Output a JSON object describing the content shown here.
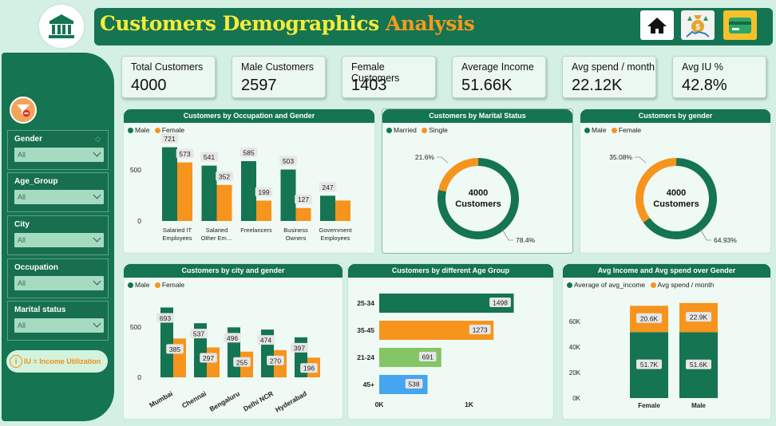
{
  "header": {
    "title_part1": "Customers Demographics",
    "title_part2": "Analysis",
    "buttons": {
      "home_icon": "home-icon",
      "money_icon": "money-bag-icon",
      "card_icon": "credit-card-icon"
    }
  },
  "sidebar": {
    "slicers": [
      {
        "label": "Gender",
        "value": "All"
      },
      {
        "label": "Age_Group",
        "value": "All"
      },
      {
        "label": "City",
        "value": "All"
      },
      {
        "label": "Occupation",
        "value": "All"
      },
      {
        "label": "Marital status",
        "value": "All"
      }
    ],
    "note_icon": "i",
    "note": "IU = Income Utilization"
  },
  "kpis": [
    {
      "label": "Total Customers",
      "value": "4000"
    },
    {
      "label": "Male Customers",
      "value": "2597"
    },
    {
      "label": "Female Customers",
      "value": "1403"
    },
    {
      "label": "Average Income",
      "value": "51.66K"
    },
    {
      "label": "Avg spend / month",
      "value": "22.12K"
    },
    {
      "label": "Avg IU %",
      "value": "42.8%"
    }
  ],
  "colors": {
    "green": "#157451",
    "orange": "#f7941d",
    "light_green": "#84c566",
    "blue": "#45a5f0"
  },
  "charts": {
    "occupation": {
      "title": "Customers by Occupation and Gender",
      "legend": [
        "Male",
        "Female"
      ]
    },
    "marital": {
      "title": "Customers by Marital Status",
      "legend": [
        "Married",
        "Single"
      ],
      "center_value": "4000",
      "center_label": "Customers",
      "labels": [
        "78.4%",
        "21.6%"
      ]
    },
    "gender": {
      "title": "Customers by gender",
      "legend": [
        "Male",
        "Female"
      ],
      "center_value": "4000",
      "center_label": "Customers",
      "labels": [
        "64.93%",
        "35.08%"
      ]
    },
    "city": {
      "title": "Customers by city and gender",
      "legend": [
        "Male",
        "Female"
      ]
    },
    "age": {
      "title": "Customers by different Age Group"
    },
    "income": {
      "title": "Avg Income and Avg spend over Gender",
      "legend": [
        "Average of avg_income",
        "Avg spend / month"
      ]
    }
  },
  "chart_data": [
    {
      "type": "bar",
      "title": "Customers by Occupation and Gender",
      "categories": [
        "Salaried IT Employees",
        "Salaried Other Em…",
        "Freelancers",
        "Business Owners",
        "Government Employees"
      ],
      "tick_labels": [
        [
          "Salaried IT",
          "Employees"
        ],
        [
          "Salaried",
          "Other Em…"
        ],
        [
          "Freelancers"
        ],
        [
          "Business",
          "Owners"
        ],
        [
          "Government",
          "Employees"
        ]
      ],
      "series": [
        {
          "name": "Male",
          "values": [
            721,
            541,
            585,
            503,
            247
          ]
        },
        {
          "name": "Female",
          "values": [
            573,
            352,
            199,
            127,
            200
          ]
        }
      ],
      "data_labels": [
        [
          "721",
          "541",
          "585",
          "503",
          "247"
        ],
        [
          "573",
          "352",
          "199",
          "127",
          ""
        ]
      ],
      "yticks": [
        0,
        500
      ],
      "ylim": [
        0,
        780
      ],
      "legend": "top-left"
    },
    {
      "type": "pie",
      "title": "Customers by Marital Status",
      "categories": [
        "Married",
        "Single"
      ],
      "values": [
        78.4,
        21.6
      ]
    },
    {
      "type": "pie",
      "title": "Customers by gender",
      "categories": [
        "Male",
        "Female"
      ],
      "values": [
        64.93,
        35.08
      ]
    },
    {
      "type": "bar",
      "title": "Customers by city and gender",
      "categories": [
        "Mumbai",
        "Chennai",
        "Bengaluru",
        "Delhi NCR",
        "Hyderabad"
      ],
      "series": [
        {
          "name": "Male",
          "values": [
            693,
            537,
            496,
            474,
            397
          ]
        },
        {
          "name": "Female",
          "values": [
            385,
            297,
            255,
            270,
            196
          ]
        }
      ],
      "yticks": [
        0,
        500
      ],
      "ylim": [
        0,
        760
      ],
      "legend": "top-left"
    },
    {
      "type": "bar",
      "orientation": "horizontal",
      "title": "Customers by different Age Group",
      "categories": [
        "25-34",
        "35-45",
        "21-24",
        "45+"
      ],
      "values": [
        1498,
        1273,
        691,
        538
      ],
      "xticks": [
        "0K",
        "1K"
      ],
      "xlim": [
        0,
        1600
      ]
    },
    {
      "type": "bar",
      "stacked": true,
      "title": "Avg Income and Avg spend over Gender",
      "categories": [
        "Female",
        "Male"
      ],
      "series": [
        {
          "name": "Average of avg_income",
          "values": [
            51.7,
            51.6
          ],
          "labels": [
            "51.7K",
            "51.6K"
          ]
        },
        {
          "name": "Avg spend / month",
          "values": [
            20.6,
            22.9
          ],
          "labels": [
            "20.6K",
            "22.9K"
          ]
        }
      ],
      "yticks": [
        "0K",
        "20K",
        "40K",
        "60K"
      ],
      "ylim": [
        0,
        80
      ],
      "legend": "top-left"
    }
  ]
}
